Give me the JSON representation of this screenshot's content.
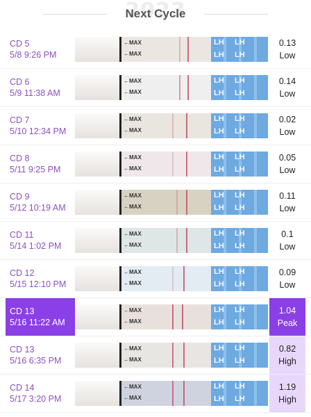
{
  "header": {
    "title": "Next Cycle",
    "watermark": "2023"
  },
  "strip_labels": {
    "max": "←MAX",
    "lh": "LH"
  },
  "rows": [
    {
      "cd": "CD 5",
      "time": "5/8 9:26 PM",
      "value": "0.13",
      "status": "Low"
    },
    {
      "cd": "CD 6",
      "time": "5/9 11:38 AM",
      "value": "0.14",
      "status": "Low"
    },
    {
      "cd": "CD 7",
      "time": "5/10 12:34 PM",
      "value": "0.02",
      "status": "Low"
    },
    {
      "cd": "CD 8",
      "time": "5/11 9:25 PM",
      "value": "0.05",
      "status": "Low"
    },
    {
      "cd": "CD 9",
      "time": "5/12 10:19 AM",
      "value": "0.11",
      "status": "Low"
    },
    {
      "cd": "CD 11",
      "time": "5/14 1:02 PM",
      "value": "0.1",
      "status": "Low"
    },
    {
      "cd": "CD 12",
      "time": "5/15 12:10 PM",
      "value": "0.09",
      "status": "Low"
    },
    {
      "cd": "CD 13",
      "time": "5/16 11:22 AM",
      "value": "1.04",
      "status": "Peak"
    },
    {
      "cd": "CD 13",
      "time": "5/16 6:35 PM",
      "value": "0.82",
      "status": "High"
    },
    {
      "cd": "CD 14",
      "time": "5/17 3:20 PM",
      "value": "1.19",
      "status": "High"
    }
  ],
  "colors": {
    "accent": "#8b3fe6",
    "label_text": "#8e4fc0",
    "high_bg": "#e8d7fb",
    "test_line": "#c0566a",
    "strip_blue": "#6ea9e0"
  }
}
